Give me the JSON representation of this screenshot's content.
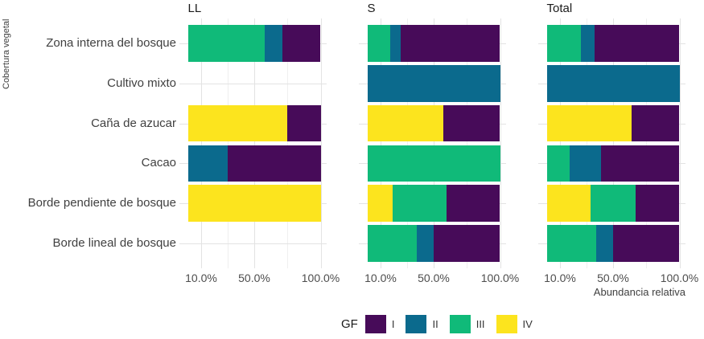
{
  "y_axis_title": "Cobertura vegetal",
  "x_axis_title": "Abundancia relativa",
  "x_tick_labels": [
    "10.0%",
    "50.0%",
    "100.0%"
  ],
  "x_tick_values": [
    10,
    50,
    100
  ],
  "x_minor_values": [
    30,
    75
  ],
  "colors": {
    "I": "#470b59",
    "II": "#0b6a8d",
    "III": "#10ba79",
    "IV": "#fce41e",
    "grid_major": "#e3e3e3",
    "grid_minor": "#efefef"
  },
  "legend": {
    "title": "GF",
    "items": [
      {
        "label": "I",
        "group": "I"
      },
      {
        "label": "II",
        "group": "II"
      },
      {
        "label": "III",
        "group": "III"
      },
      {
        "label": "IV",
        "group": "IV"
      }
    ]
  },
  "chart_data": {
    "type": "bar",
    "orientation": "horizontal",
    "stacked": true,
    "xlim": [
      0,
      100
    ],
    "x_unit": "percent",
    "grid": "on",
    "legend_position": "bottom",
    "categories": [
      "Zona interna del bosque",
      "Cultivo mixto",
      "Caña de azucar",
      "Cacao",
      "Borde pendiente de bosque",
      "Borde lineal de bosque"
    ],
    "facets": [
      {
        "title": "LL",
        "bars": {
          "Zona interna del bosque": [
            [
              "III",
              58
            ],
            [
              "II",
              13
            ],
            [
              "I",
              29
            ]
          ],
          "Cultivo mixto": [],
          "Caña de azucar": [
            [
              "IV",
              75
            ],
            [
              "I",
              25
            ]
          ],
          "Cacao": [
            [
              "II",
              30
            ],
            [
              "I",
              70
            ]
          ],
          "Borde pendiente de bosque": [
            [
              "IV",
              100
            ]
          ],
          "Borde lineal de bosque": []
        }
      },
      {
        "title": "S",
        "bars": {
          "Zona interna del bosque": [
            [
              "III",
              17
            ],
            [
              "II",
              8
            ],
            [
              "I",
              75
            ]
          ],
          "Cultivo mixto": [
            [
              "II",
              100
            ]
          ],
          "Caña de azucar": [
            [
              "IV",
              57
            ],
            [
              "I",
              43
            ]
          ],
          "Cacao": [
            [
              "III",
              100
            ]
          ],
          "Borde pendiente de bosque": [
            [
              "IV",
              19
            ],
            [
              "III",
              41
            ],
            [
              "I",
              40
            ]
          ],
          "Borde lineal de bosque": [
            [
              "III",
              37
            ],
            [
              "II",
              13
            ],
            [
              "I",
              50
            ]
          ]
        }
      },
      {
        "title": "Total",
        "bars": {
          "Zona interna del bosque": [
            [
              "III",
              26
            ],
            [
              "II",
              10
            ],
            [
              "I",
              64
            ]
          ],
          "Cultivo mixto": [
            [
              "II",
              100
            ]
          ],
          "Caña de azucar": [
            [
              "IV",
              64
            ],
            [
              "I",
              36
            ]
          ],
          "Cacao": [
            [
              "III",
              17
            ],
            [
              "II",
              24
            ],
            [
              "I",
              59
            ]
          ],
          "Borde pendiente de bosque": [
            [
              "IV",
              33
            ],
            [
              "III",
              34
            ],
            [
              "I",
              33
            ]
          ],
          "Borde lineal de bosque": [
            [
              "III",
              37
            ],
            [
              "II",
              13
            ],
            [
              "I",
              50
            ]
          ]
        }
      }
    ]
  }
}
